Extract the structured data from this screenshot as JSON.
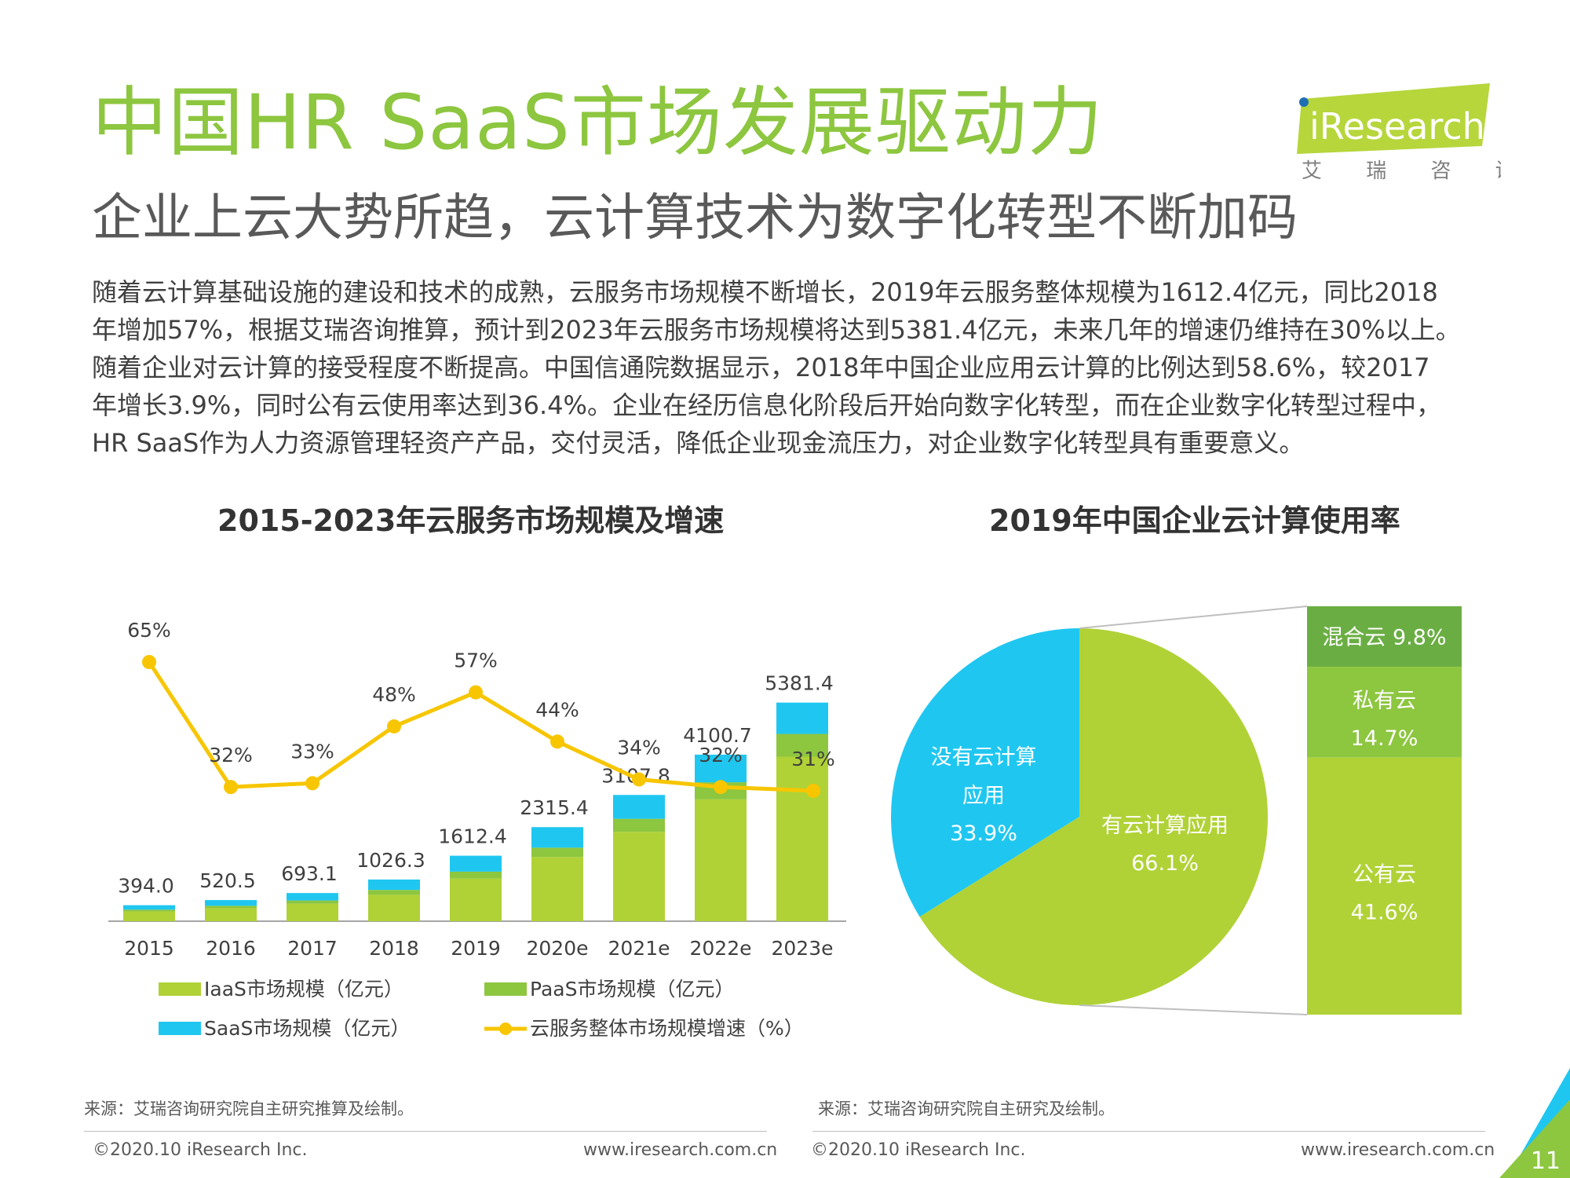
{
  "header": {
    "title": "中国HR SaaS市场发展驱动力",
    "subtitle": "企业上云大势所趋，云计算技术为数字化转型不断加码"
  },
  "logo": {
    "brand": "iResearch",
    "tagline": "艾 瑞 咨 询"
  },
  "body": {
    "lines": [
      "随着云计算基础设施的建设和技术的成熟，云服务市场规模不断增长，2019年云服务整体规模为1612.4亿元，同比2018",
      "年增加57%，根据艾瑞咨询推算，预计到2023年云服务市场规模将达到5381.4亿元，未来几年的增速仍维持在30%以上。",
      "随着企业对云计算的接受程度不断提高。中国信通院数据显示，2018年中国企业应用云计算的比例达到58.6%，较2017",
      "年增长3.9%，同时公有云使用率达到36.4%。企业在经历信息化阶段后开始向数字化转型，而在企业数字化转型过程中，",
      "HR SaaS作为人力资源管理轻资产产品，交付灵活，降低企业现金流压力，对企业数字化转型具有重要意义。"
    ]
  },
  "chart_data": [
    {
      "type": "bar",
      "stacked": true,
      "title": "2015-2023年云服务市场规模及增速",
      "categories": [
        "2015",
        "2016",
        "2017",
        "2018",
        "2019",
        "2020e",
        "2021e",
        "2022e",
        "2023e"
      ],
      "totals": [
        394.0,
        520.5,
        693.1,
        1026.3,
        1612.4,
        2315.4,
        3107.8,
        4100.7,
        5381.4
      ],
      "total_labels": [
        "394.0",
        "520.5",
        "693.1",
        "1026.3",
        "1612.4",
        "2315.4",
        "3107.8",
        "4100.7",
        "5381.4"
      ],
      "series": [
        {
          "name": "IaaS市场规模（亿元）",
          "color": "#b0d236",
          "values": [
            240,
            320,
            430,
            650,
            1050,
            1580,
            2200,
            3000,
            4050
          ]
        },
        {
          "name": "PaaS市场规模（亿元）",
          "color": "#8dc63f",
          "values": [
            45,
            60,
            80,
            120,
            170,
            230,
            320,
            420,
            560
          ]
        },
        {
          "name": "SaaS市场规模（亿元）",
          "color": "#1fc7f0",
          "values": [
            109,
            140.5,
            183.1,
            256.3,
            392.4,
            505.4,
            587.8,
            680.7,
            771.4
          ]
        }
      ],
      "line": {
        "name": "云服务整体市场规模增速（%）",
        "color": "#f7c600",
        "values": [
          65,
          32,
          33,
          48,
          57,
          44,
          34,
          32,
          31
        ],
        "labels": [
          "65%",
          "32%",
          "33%",
          "48%",
          "57%",
          "44%",
          "34%",
          "32%",
          "31%"
        ]
      },
      "ylim": [
        0,
        5800
      ],
      "legend": "bottom",
      "source": "来源：艾瑞咨询研究院自主研究推算及绘制。"
    },
    {
      "type": "pie",
      "title": "2019年中国企业云计算使用率",
      "slices": [
        {
          "label": "有云计算应用",
          "value": 66.1,
          "value_label": "66.1%",
          "color": "#b0d236"
        },
        {
          "label": "没有云计算应用",
          "value": 33.9,
          "value_label": "33.9%",
          "color": "#1fc7f0"
        }
      ],
      "breakdown": {
        "of": "有云计算应用",
        "items": [
          {
            "label": "混合云",
            "value": 9.8,
            "value_label": "9.8%",
            "color": "#6aae43"
          },
          {
            "label": "私有云",
            "value": 14.7,
            "value_label": "14.7%",
            "color": "#8dc63f"
          },
          {
            "label": "公有云",
            "value": 41.6,
            "value_label": "41.6%",
            "color": "#b0d236"
          }
        ]
      },
      "source": "来源：艾瑞咨询研究院自主研究及绘制。"
    }
  ],
  "footer": {
    "left_copyright": "©2020.10 iResearch Inc.",
    "left_url": "www.iresearch.com.cn",
    "right_copyright": "©2020.10 iResearch Inc.",
    "right_url": "www.iresearch.com.cn",
    "page_number": "11"
  },
  "colors": {
    "accent": "#8dc63f",
    "saas": "#1fc7f0",
    "line": "#f7c600",
    "mixed_cloud": "#6aae43"
  }
}
